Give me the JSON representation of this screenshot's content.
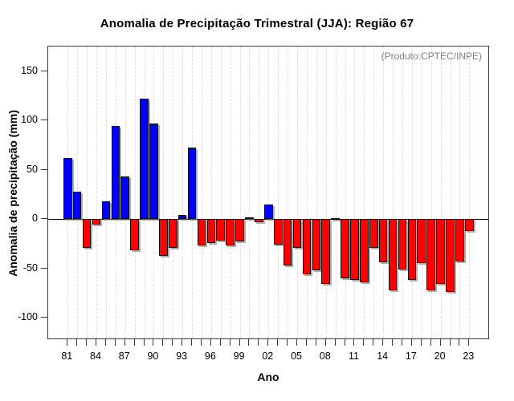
{
  "header": {
    "title": "Anomalia de Precipitação Trimestral (JJA): Região 67"
  },
  "chart_data": {
    "type": "bar",
    "title": "Anomalia de Precipitação Trimestral (JJA): Região 67",
    "annotation": "(Produto:CPTEC/INPE)",
    "xlabel": "Ano",
    "ylabel": "Anomalia de precipitação (mm)",
    "ylim": [
      -123,
      177
    ],
    "y_ticks": [
      -100,
      -50,
      0,
      50,
      100,
      150
    ],
    "x_tick_labels_shown": [
      "81",
      "84",
      "87",
      "90",
      "93",
      "96",
      "99",
      "02",
      "05",
      "08",
      "11",
      "14",
      "17",
      "20",
      "23"
    ],
    "grid": "vertical-dashed-per-year",
    "legend": "none",
    "colors": {
      "positive_bar": "#0000ff",
      "negative_bar": "#ff0000",
      "bar_border": "#101010",
      "annotation_text": "#808080",
      "gridline": "#dedede"
    },
    "categories": [
      1981,
      1982,
      1983,
      1984,
      1985,
      1986,
      1987,
      1988,
      1989,
      1990,
      1991,
      1992,
      1993,
      1994,
      1995,
      1996,
      1997,
      1998,
      1999,
      2000,
      2001,
      2002,
      2003,
      2004,
      2005,
      2006,
      2007,
      2008,
      2009,
      2010,
      2011,
      2012,
      2013,
      2014,
      2015,
      2016,
      2017,
      2018,
      2019,
      2020,
      2021,
      2022,
      2023
    ],
    "values": [
      62,
      28,
      -29,
      -6,
      18,
      94,
      43,
      -32,
      122,
      97,
      -37,
      -29,
      4,
      72,
      -27,
      -24,
      -22,
      -27,
      -23,
      2,
      -3,
      15,
      -26,
      -47,
      -29,
      -56,
      -52,
      -66,
      1,
      -60,
      -62,
      -64,
      -29,
      -44,
      -72,
      -51,
      -62,
      -45,
      -72,
      -66,
      -74,
      -43,
      -12
    ]
  }
}
